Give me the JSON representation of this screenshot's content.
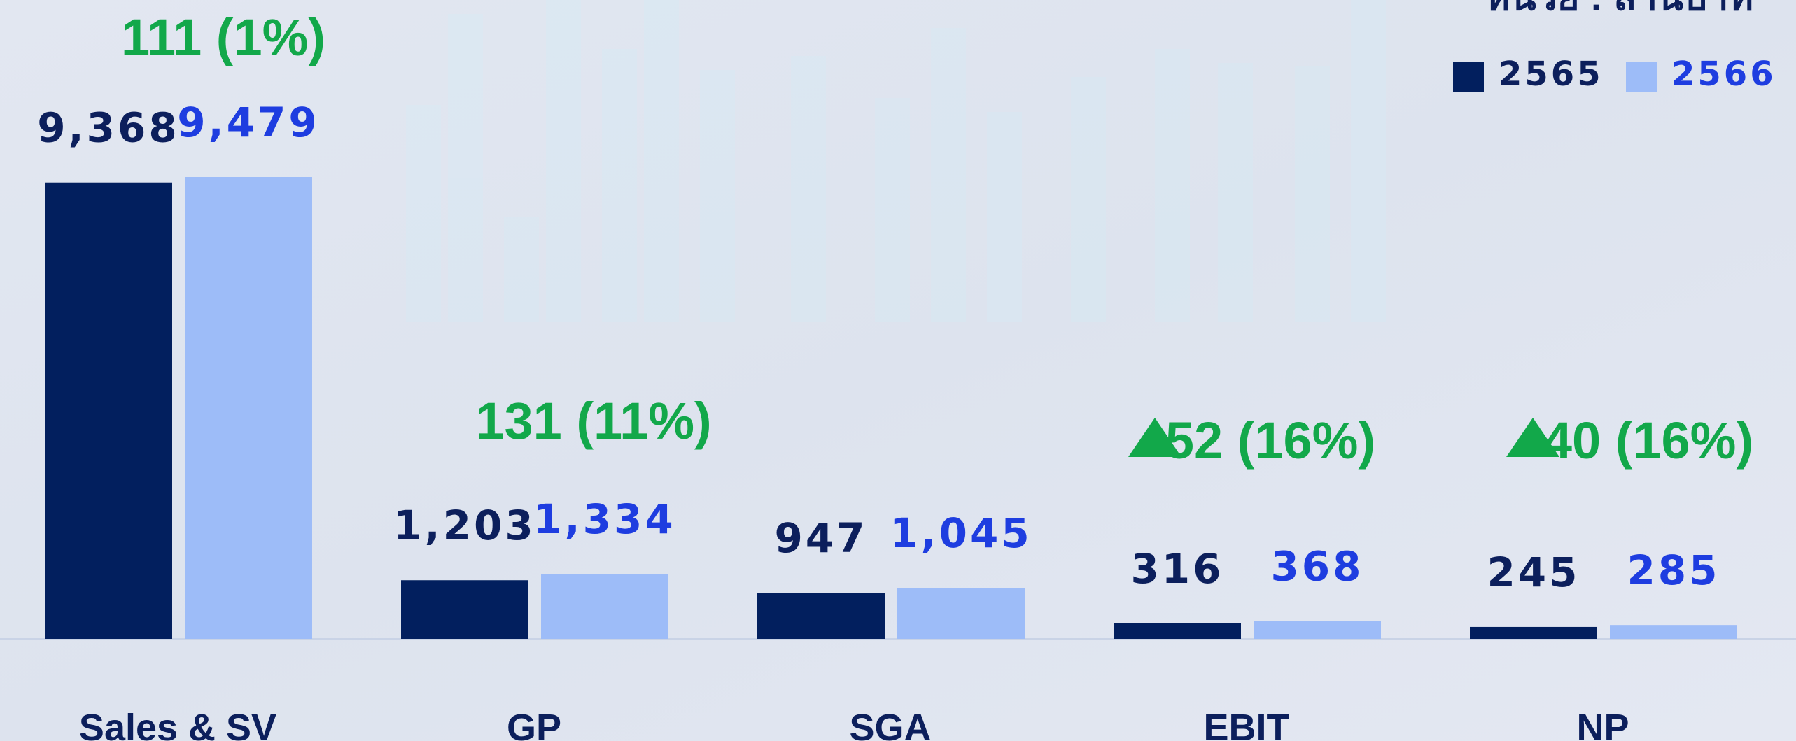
{
  "chart_data": {
    "type": "bar",
    "unit_label": "หน่วย : ล้านบาท",
    "categories": [
      "Sales & SV",
      "GP",
      "SGA",
      "EBIT",
      "NP"
    ],
    "series": [
      {
        "name": "2565",
        "color": "#021f5e",
        "label_color": "#0c1f5c",
        "values": [
          9368,
          1203,
          947,
          316,
          245
        ],
        "value_labels": [
          "9,368",
          "1,203",
          "947",
          "316",
          "245"
        ]
      },
      {
        "name": "2566",
        "color": "#9dbcf8",
        "label_color": "#1e3de0",
        "values": [
          9479,
          1334,
          1045,
          368,
          285
        ],
        "value_labels": [
          "9,479",
          "1,334",
          "1,045",
          "368",
          "285"
        ]
      }
    ],
    "annotations": [
      {
        "text": "111 (1%)"
      },
      {
        "text": "131 (11%)"
      },
      {
        "text": "52 (16%)",
        "marker": "triangle-up"
      },
      {
        "text": "40 (16%)",
        "marker": "triangle-up"
      }
    ],
    "legend": "top-right"
  }
}
